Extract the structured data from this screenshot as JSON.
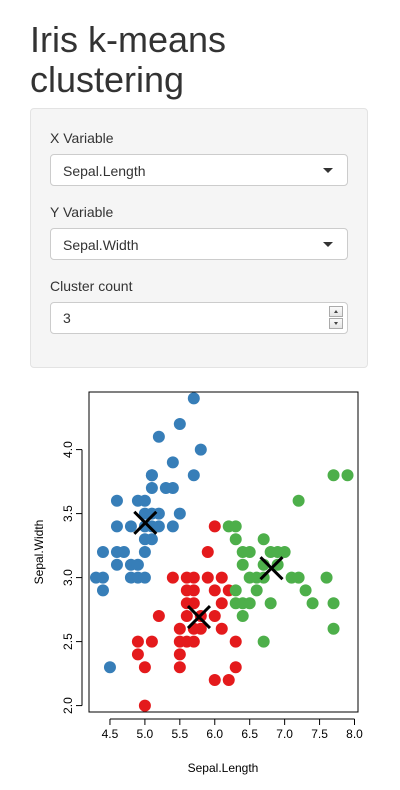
{
  "app": {
    "title": "Iris k-means clustering"
  },
  "controls": {
    "x_label": "X Variable",
    "x_value": "Sepal.Length",
    "y_label": "Y Variable",
    "y_value": "Sepal.Width",
    "cluster_label": "Cluster count",
    "cluster_value": "3"
  },
  "chart_data": {
    "type": "scatter",
    "xlabel": "Sepal.Length",
    "ylabel": "Sepal.Width",
    "xlim": [
      4.2,
      8.05
    ],
    "ylim": [
      1.95,
      4.45
    ],
    "xticks": [
      "4.5",
      "5.0",
      "5.5",
      "6.0",
      "6.5",
      "7.0",
      "7.5",
      "8.0"
    ],
    "yticks": [
      "2.0",
      "2.5",
      "3.0",
      "3.5",
      "4.0"
    ],
    "grid": false,
    "colors": {
      "cluster1": "#377eb8",
      "cluster2": "#e41a1c",
      "cluster3": "#4daf4a",
      "center": "#000000"
    },
    "series": [
      {
        "cluster": 1,
        "color": "#377eb8",
        "points": [
          [
            4.3,
            3.0
          ],
          [
            4.4,
            2.9
          ],
          [
            4.4,
            3.0
          ],
          [
            4.4,
            3.2
          ],
          [
            4.5,
            2.3
          ],
          [
            4.6,
            3.1
          ],
          [
            4.6,
            3.4
          ],
          [
            4.6,
            3.6
          ],
          [
            4.6,
            3.2
          ],
          [
            4.7,
            3.2
          ],
          [
            4.8,
            3.4
          ],
          [
            4.8,
            3.0
          ],
          [
            4.8,
            3.1
          ],
          [
            4.9,
            3.0
          ],
          [
            4.9,
            3.1
          ],
          [
            4.9,
            3.6
          ],
          [
            5.0,
            3.6
          ],
          [
            5.0,
            3.4
          ],
          [
            5.0,
            3.0
          ],
          [
            5.0,
            3.5
          ],
          [
            5.0,
            3.2
          ],
          [
            5.0,
            3.3
          ],
          [
            5.1,
            3.5
          ],
          [
            5.1,
            3.8
          ],
          [
            5.1,
            3.7
          ],
          [
            5.1,
            3.3
          ],
          [
            5.1,
            3.4
          ],
          [
            5.1,
            3.8
          ],
          [
            5.2,
            3.5
          ],
          [
            5.2,
            3.4
          ],
          [
            5.2,
            4.1
          ],
          [
            5.3,
            3.7
          ],
          [
            5.4,
            3.9
          ],
          [
            5.4,
            3.7
          ],
          [
            5.4,
            3.4
          ],
          [
            5.5,
            4.2
          ],
          [
            5.5,
            3.5
          ],
          [
            5.7,
            4.4
          ],
          [
            5.7,
            3.8
          ],
          [
            5.8,
            4.0
          ]
        ]
      },
      {
        "cluster": 2,
        "color": "#e41a1c",
        "points": [
          [
            4.9,
            2.5
          ],
          [
            4.9,
            2.4
          ],
          [
            5.0,
            2.0
          ],
          [
            5.0,
            2.3
          ],
          [
            5.1,
            2.5
          ],
          [
            5.2,
            2.7
          ],
          [
            5.4,
            3.0
          ],
          [
            5.5,
            2.3
          ],
          [
            5.5,
            2.4
          ],
          [
            5.5,
            2.6
          ],
          [
            5.5,
            2.5
          ],
          [
            5.6,
            2.9
          ],
          [
            5.6,
            3.0
          ],
          [
            5.6,
            2.5
          ],
          [
            5.6,
            2.7
          ],
          [
            5.6,
            2.8
          ],
          [
            5.7,
            2.8
          ],
          [
            5.7,
            2.6
          ],
          [
            5.7,
            2.9
          ],
          [
            5.7,
            3.0
          ],
          [
            5.7,
            2.5
          ],
          [
            5.8,
            2.7
          ],
          [
            5.8,
            2.6
          ],
          [
            5.9,
            3.0
          ],
          [
            5.9,
            3.2
          ],
          [
            6.0,
            2.2
          ],
          [
            6.0,
            2.9
          ],
          [
            6.0,
            2.7
          ],
          [
            6.0,
            3.4
          ],
          [
            6.1,
            2.8
          ],
          [
            6.1,
            2.6
          ],
          [
            6.1,
            3.0
          ],
          [
            6.2,
            2.2
          ],
          [
            6.2,
            2.9
          ],
          [
            6.3,
            2.5
          ],
          [
            6.3,
            2.3
          ]
        ]
      },
      {
        "cluster": 3,
        "color": "#4daf4a",
        "points": [
          [
            6.2,
            3.4
          ],
          [
            6.3,
            2.8
          ],
          [
            6.3,
            3.4
          ],
          [
            6.3,
            3.3
          ],
          [
            6.3,
            2.9
          ],
          [
            6.4,
            3.2
          ],
          [
            6.4,
            2.8
          ],
          [
            6.4,
            2.7
          ],
          [
            6.4,
            3.1
          ],
          [
            6.5,
            3.0
          ],
          [
            6.5,
            2.8
          ],
          [
            6.5,
            3.2
          ],
          [
            6.6,
            2.9
          ],
          [
            6.6,
            3.0
          ],
          [
            6.7,
            3.1
          ],
          [
            6.7,
            2.5
          ],
          [
            6.7,
            3.3
          ],
          [
            6.7,
            3.0
          ],
          [
            6.8,
            2.8
          ],
          [
            6.8,
            3.2
          ],
          [
            6.9,
            3.1
          ],
          [
            6.9,
            3.2
          ],
          [
            7.0,
            3.2
          ],
          [
            7.1,
            3.0
          ],
          [
            7.2,
            3.6
          ],
          [
            7.2,
            3.0
          ],
          [
            7.3,
            2.9
          ],
          [
            7.4,
            2.8
          ],
          [
            7.6,
            3.0
          ],
          [
            7.7,
            3.8
          ],
          [
            7.7,
            2.6
          ],
          [
            7.7,
            2.8
          ],
          [
            7.9,
            3.8
          ]
        ]
      }
    ],
    "centers": [
      [
        5.006,
        3.428
      ],
      [
        5.774,
        2.692
      ],
      [
        6.812,
        3.074
      ]
    ]
  }
}
